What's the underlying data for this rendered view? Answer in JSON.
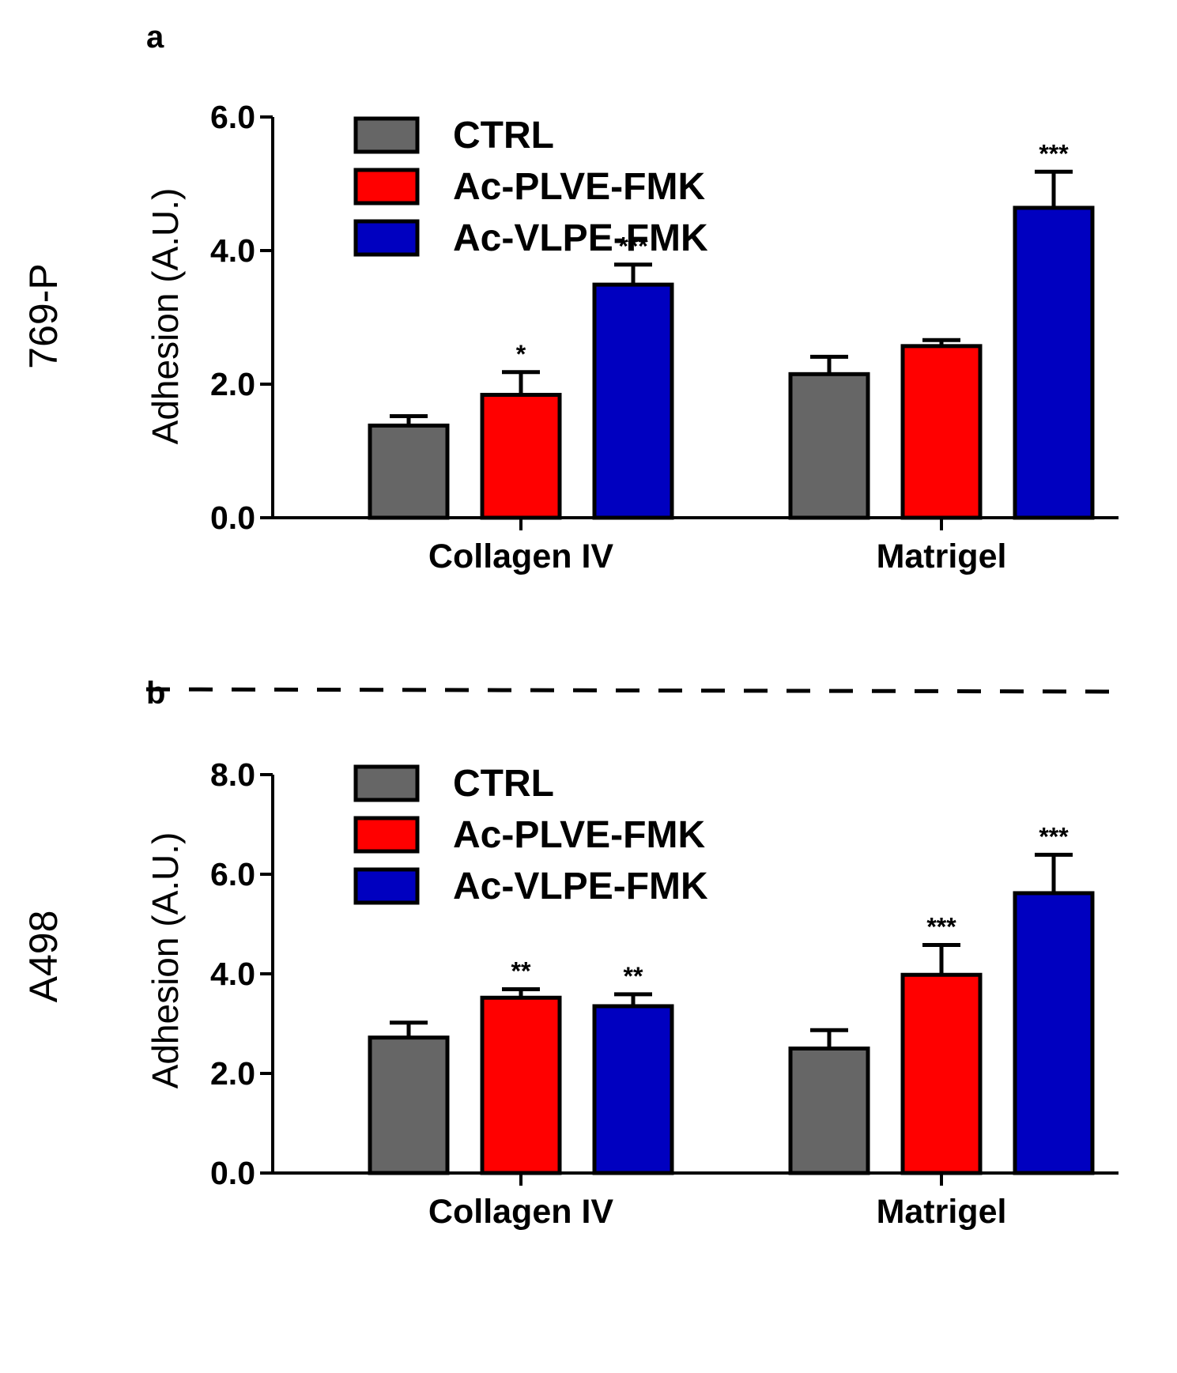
{
  "chart_data": [
    {
      "type": "bar",
      "panel": "a",
      "cell_line": "769-P",
      "ylabel": "Adhesion (A.U.)",
      "ylim": [
        0,
        6.0
      ],
      "yticks": [
        "0.0",
        "2.0",
        "4.0",
        "6.0"
      ],
      "categories": [
        "Collagen IV",
        "Matrigel"
      ],
      "series": [
        {
          "name": "CTRL",
          "color": "#666666",
          "values": [
            1.38,
            2.15
          ],
          "errors": [
            0.14,
            0.26
          ],
          "significance": [
            "",
            ""
          ]
        },
        {
          "name": "Ac-PLVE-FMK",
          "color": "#ff0000",
          "values": [
            1.84,
            2.57
          ],
          "errors": [
            0.34,
            0.09
          ],
          "significance": [
            "*",
            ""
          ]
        },
        {
          "name": "Ac-VLPE-FMK",
          "color": "#0000c0",
          "values": [
            3.49,
            4.64
          ],
          "errors": [
            0.3,
            0.54
          ],
          "significance": [
            "***",
            "***"
          ]
        }
      ]
    },
    {
      "type": "bar",
      "panel": "b",
      "cell_line": "A498",
      "ylabel": "Adhesion (A.U.)",
      "ylim": [
        0,
        8.0
      ],
      "yticks": [
        "0.0",
        "2.0",
        "4.0",
        "6.0",
        "8.0"
      ],
      "categories": [
        "Collagen IV",
        "Matrigel"
      ],
      "series": [
        {
          "name": "CTRL",
          "color": "#666666",
          "values": [
            2.72,
            2.5
          ],
          "errors": [
            0.3,
            0.37
          ],
          "significance": [
            "",
            ""
          ]
        },
        {
          "name": "Ac-PLVE-FMK",
          "color": "#ff0000",
          "values": [
            3.52,
            3.98
          ],
          "errors": [
            0.17,
            0.6
          ],
          "significance": [
            "**",
            "***"
          ]
        },
        {
          "name": "Ac-VLPE-FMK",
          "color": "#0000c0",
          "values": [
            3.35,
            5.62
          ],
          "errors": [
            0.24,
            0.77
          ],
          "significance": [
            "**",
            "***"
          ]
        }
      ]
    }
  ]
}
